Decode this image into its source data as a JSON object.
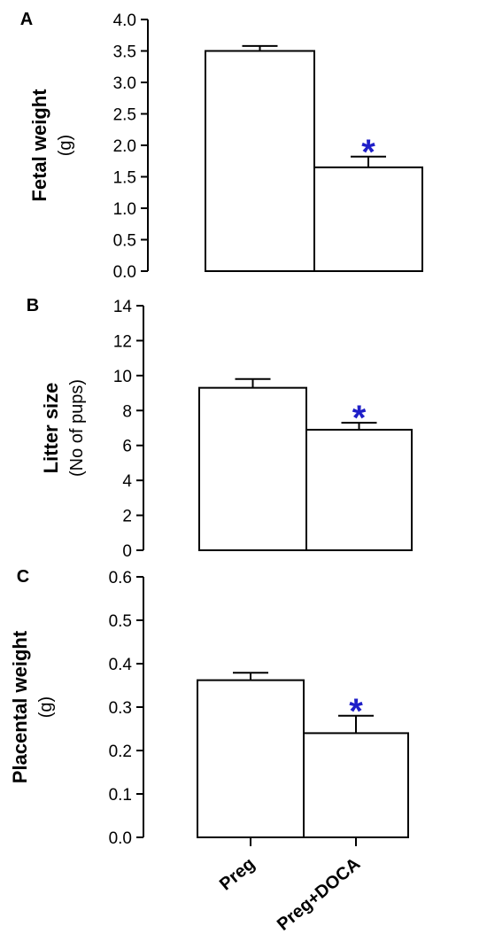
{
  "chart_data": [
    {
      "type": "bar",
      "panel": "A",
      "categories": [
        "Preg",
        "Preg+DOCA"
      ],
      "values": [
        3.5,
        1.65
      ],
      "errors": [
        0.08,
        0.17
      ],
      "significance": [
        "",
        "*"
      ],
      "ylabel": "Fetal weight",
      "yunit": "(g)",
      "ylim": [
        0,
        4.0
      ],
      "yticks": [
        "0.0",
        "0.5",
        "1.0",
        "1.5",
        "2.0",
        "2.5",
        "3.0",
        "3.5",
        "4.0"
      ],
      "grid": false
    },
    {
      "type": "bar",
      "panel": "B",
      "categories": [
        "Preg",
        "Preg+DOCA"
      ],
      "values": [
        9.3,
        6.9
      ],
      "errors": [
        0.5,
        0.4
      ],
      "significance": [
        "",
        "*"
      ],
      "ylabel": "Litter size",
      "yunit": "(No of pups)",
      "ylim": [
        0,
        14
      ],
      "yticks": [
        "0",
        "2",
        "4",
        "6",
        "8",
        "10",
        "12",
        "14"
      ],
      "grid": false
    },
    {
      "type": "bar",
      "panel": "C",
      "categories": [
        "Preg",
        "Preg+DOCA"
      ],
      "values": [
        0.362,
        0.24
      ],
      "errors": [
        0.017,
        0.04
      ],
      "significance": [
        "",
        "*"
      ],
      "ylabel": "Placental weight",
      "yunit": "(g)",
      "ylim": [
        0,
        0.6
      ],
      "yticks": [
        "0.0",
        "0.1",
        "0.2",
        "0.3",
        "0.4",
        "0.5",
        "0.6"
      ],
      "grid": false
    }
  ],
  "x_categories": [
    "Preg",
    "Preg+DOCA"
  ],
  "colors": {
    "bar_fill": "#ffffff",
    "bar_stroke": "#000000",
    "significance": "#1f1fc8"
  }
}
